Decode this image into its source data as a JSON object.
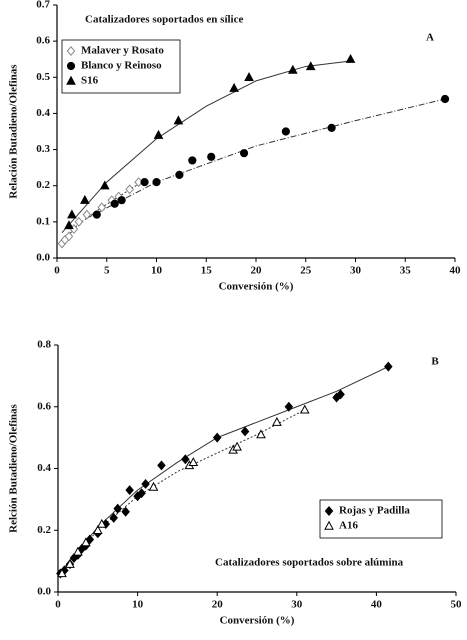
{
  "chart_data": [
    {
      "type": "scatter",
      "title": "Catalizadores soportados en sílice",
      "panel_label": "A",
      "xlabel": "Conversión (%)",
      "ylabel": "Relación Butadieno/Olefinas",
      "xlim": [
        0,
        40
      ],
      "ylim": [
        0,
        0.7
      ],
      "xticks": [
        0,
        5,
        10,
        15,
        20,
        25,
        30,
        35,
        40
      ],
      "yticks": [
        {
          "value": 0,
          "label": "0.0"
        },
        0.1,
        0.2,
        0.3,
        0.4,
        0.5,
        0.6,
        0.7
      ],
      "legend": "upper left",
      "series": [
        {
          "name": "Malaver y Rosato",
          "color": "#888888",
          "marker": "diamond-open",
          "x": [
            0.5,
            0.8,
            1.2,
            1.7,
            2.2,
            3,
            4.5,
            5.5,
            6.2,
            7.3,
            8.2
          ],
          "values": [
            0.04,
            0.05,
            0.06,
            0.08,
            0.1,
            0.12,
            0.14,
            0.16,
            0.17,
            0.19,
            0.21
          ],
          "fit": {
            "style": "dotted",
            "x": [
              0.3,
              2,
              4.5,
              8.5
            ],
            "values": [
              0.035,
              0.09,
              0.14,
              0.21
            ]
          }
        },
        {
          "name": "Blanco y Reinoso",
          "color": "#000000",
          "marker": "circle",
          "x": [
            4,
            5.8,
            6.5,
            8.8,
            10,
            12.3,
            13.6,
            15.5,
            18.8,
            23,
            27.6,
            39
          ],
          "values": [
            0.12,
            0.15,
            0.16,
            0.21,
            0.21,
            0.23,
            0.27,
            0.28,
            0.29,
            0.35,
            0.36,
            0.44
          ],
          "fit": {
            "style": "dashdot",
            "x": [
              3,
              10,
              20,
              30,
              39
            ],
            "values": [
              0.11,
              0.21,
              0.31,
              0.38,
              0.44
            ]
          }
        },
        {
          "name": "S16",
          "color": "#000000",
          "marker": "triangle",
          "x": [
            1.2,
            1.5,
            2.8,
            4.8,
            10.2,
            12.2,
            17.8,
            19.3,
            23.7,
            25.5,
            29.5
          ],
          "values": [
            0.09,
            0.12,
            0.16,
            0.2,
            0.34,
            0.38,
            0.47,
            0.5,
            0.52,
            0.53,
            0.55
          ],
          "fit": {
            "style": "solid",
            "x": [
              0.5,
              5,
              10,
              15,
              20,
              25,
              29.5
            ],
            "values": [
              0.07,
              0.21,
              0.33,
              0.42,
              0.49,
              0.53,
              0.545
            ]
          }
        }
      ]
    },
    {
      "type": "scatter",
      "title": "Catalizadores soportados sobre alúmina",
      "panel_label": "B",
      "xlabel": "Conversión (%)",
      "ylabel": "Relción Butadieno/Olefinas",
      "xlim": [
        0,
        50
      ],
      "ylim": [
        0,
        0.8
      ],
      "xticks": [
        0,
        10,
        20,
        30,
        40,
        50
      ],
      "yticks": [
        {
          "value": 0,
          "label": "0.0"
        },
        0.2,
        0.4,
        0.6,
        0.8
      ],
      "legend": "lower right",
      "series": [
        {
          "name": "Rojas y Padilla",
          "color": "#000000",
          "marker": "diamond",
          "x": [
            0.3,
            0.8,
            1.5,
            2,
            2.5,
            3,
            3.5,
            4,
            5,
            6,
            7,
            7.5,
            8.5,
            9,
            10,
            10.5,
            11,
            13,
            16,
            20,
            23.5,
            29,
            35,
            35.5,
            41.5
          ],
          "values": [
            0.06,
            0.07,
            0.09,
            0.11,
            0.12,
            0.14,
            0.15,
            0.17,
            0.19,
            0.22,
            0.24,
            0.27,
            0.26,
            0.33,
            0.31,
            0.32,
            0.35,
            0.41,
            0.43,
            0.5,
            0.52,
            0.6,
            0.63,
            0.64,
            0.73
          ],
          "fit": {
            "style": "solid",
            "x": [
              0,
              5,
              10,
              15,
              20,
              25,
              30,
              35,
              41.5
            ],
            "values": [
              0.055,
              0.21,
              0.33,
              0.42,
              0.5,
              0.55,
              0.6,
              0.65,
              0.73
            ]
          }
        },
        {
          "name": "A16",
          "color": "#000000",
          "marker": "triangle-open",
          "x": [
            0.5,
            1.5,
            2.5,
            3.5,
            5,
            5.5,
            12,
            16.5,
            17,
            22,
            22.5,
            25.5,
            27.5,
            31
          ],
          "values": [
            0.06,
            0.09,
            0.13,
            0.16,
            0.2,
            0.22,
            0.34,
            0.41,
            0.42,
            0.46,
            0.47,
            0.51,
            0.55,
            0.59
          ],
          "fit": {
            "style": "dotted",
            "x": [
              0,
              5,
              10,
              15,
              20,
              25,
              31
            ],
            "values": [
              0.055,
              0.2,
              0.31,
              0.39,
              0.45,
              0.51,
              0.59
            ]
          }
        }
      ]
    }
  ]
}
